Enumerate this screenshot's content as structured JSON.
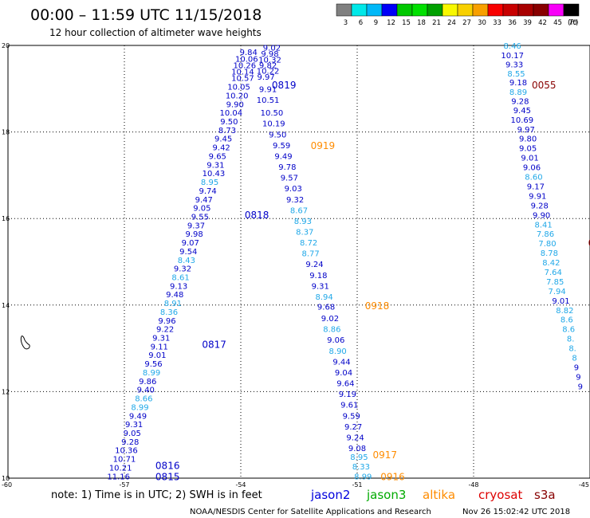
{
  "header": {
    "title": "00:00 – 11:59 UTC 11/15/2018",
    "subtitle": "12 hour collection of altimeter wave heights"
  },
  "colorbar": {
    "labels": [
      "3",
      "6",
      "9",
      "12",
      "15",
      "18",
      "21",
      "24",
      "27",
      "30",
      "33",
      "36",
      "39",
      "42",
      "45",
      "70"
    ],
    "unit": "(ft)",
    "colors": [
      "#808080",
      "#00e8e8",
      "#00b8f8",
      "#0000f8",
      "#00c800",
      "#00e000",
      "#00a000",
      "#f8f800",
      "#f8d000",
      "#f8a000",
      "#f80000",
      "#c80000",
      "#a80000",
      "#880000",
      "#f800f8",
      "#000000"
    ]
  },
  "axes": {
    "lat_ticks": [
      "20",
      "18",
      "16",
      "14",
      "12",
      "10"
    ],
    "lon_ticks": [
      "-60",
      "-57",
      "-54",
      "-51",
      "-48",
      "-45"
    ],
    "lat_values": [
      20,
      18,
      16,
      14,
      12,
      10
    ],
    "lon_values": [
      -60,
      -57,
      -54,
      -51,
      -48,
      -45
    ]
  },
  "footer": {
    "note": "note: 1) Time is in UTC; 2) SWH is in feet",
    "credit": "NOAA/NESDIS Center for Satellite Applications and Research",
    "timestamp": "Nov 26 15:02:42 UTC 2018"
  },
  "legend": [
    {
      "label": "jason2",
      "color": "#0000dd"
    },
    {
      "label": "jason3",
      "color": "#00aa00"
    },
    {
      "label": "altika",
      "color": "#ff8c00"
    },
    {
      "label": "cryosat",
      "color": "#dd0000"
    },
    {
      "label": "s3a",
      "color": "#880000"
    }
  ],
  "colors": {
    "blue": "#0000c8",
    "cyan": "#20a8e8",
    "orange": "#ff8c00",
    "darkred": "#880000",
    "grid": "#000000"
  },
  "time_labels": [
    {
      "text": "0819",
      "color": "blue",
      "lon": -53.2,
      "lat": 19.1
    },
    {
      "text": "0818",
      "color": "blue",
      "lon": -53.9,
      "lat": 16.1
    },
    {
      "text": "0817",
      "color": "blue",
      "lon": -55.0,
      "lat": 13.1
    },
    {
      "text": "0816",
      "color": "blue",
      "lon": -56.2,
      "lat": 10.3
    },
    {
      "text": "0815",
      "color": "blue",
      "lon": -56.2,
      "lat": 10.05
    },
    {
      "text": "0919",
      "color": "orange",
      "lon": -52.2,
      "lat": 17.7
    },
    {
      "text": "0918",
      "color": "orange",
      "lon": -50.8,
      "lat": 14.0
    },
    {
      "text": "0917",
      "color": "orange",
      "lon": -50.6,
      "lat": 10.55
    },
    {
      "text": "0916",
      "color": "orange",
      "lon": -50.4,
      "lat": 10.05
    },
    {
      "text": "0055",
      "color": "darkred",
      "lon": -46.5,
      "lat": 19.1
    },
    {
      "text": "0",
      "color": "darkred",
      "lon": -45.05,
      "lat": 15.45
    }
  ],
  "tracks": [
    {
      "name": "jason2-ascending-west",
      "points": [
        {
          "v": "11.16",
          "c": "blue",
          "lon": -57.15,
          "lat": 10.05
        },
        {
          "v": "10.21",
          "c": "blue",
          "lon": -57.1,
          "lat": 10.25
        },
        {
          "v": "10.71",
          "c": "blue",
          "lon": -57.0,
          "lat": 10.45
        },
        {
          "v": "10.36",
          "c": "blue",
          "lon": -56.95,
          "lat": 10.65
        },
        {
          "v": "9.28",
          "c": "blue",
          "lon": -56.85,
          "lat": 10.85
        },
        {
          "v": "9.05",
          "c": "blue",
          "lon": -56.8,
          "lat": 11.05
        },
        {
          "v": "9.31",
          "c": "blue",
          "lon": -56.75,
          "lat": 11.25
        },
        {
          "v": "9.49",
          "c": "blue",
          "lon": -56.65,
          "lat": 11.45
        },
        {
          "v": "8.99",
          "c": "cyan",
          "lon": -56.6,
          "lat": 11.65
        },
        {
          "v": "8.66",
          "c": "cyan",
          "lon": -56.5,
          "lat": 11.85
        },
        {
          "v": "9.40",
          "c": "blue",
          "lon": -56.45,
          "lat": 12.05
        },
        {
          "v": "9.86",
          "c": "blue",
          "lon": -56.4,
          "lat": 12.25
        },
        {
          "v": "8.99",
          "c": "cyan",
          "lon": -56.3,
          "lat": 12.45
        },
        {
          "v": "9.56",
          "c": "blue",
          "lon": -56.25,
          "lat": 12.65
        },
        {
          "v": "9.01",
          "c": "blue",
          "lon": -56.15,
          "lat": 12.85
        },
        {
          "v": "9.11",
          "c": "blue",
          "lon": -56.1,
          "lat": 13.05
        },
        {
          "v": "9.31",
          "c": "blue",
          "lon": -56.05,
          "lat": 13.25
        },
        {
          "v": "9.22",
          "c": "blue",
          "lon": -55.95,
          "lat": 13.45
        },
        {
          "v": "9.96",
          "c": "blue",
          "lon": -55.9,
          "lat": 13.65
        },
        {
          "v": "8.36",
          "c": "cyan",
          "lon": -55.85,
          "lat": 13.85
        },
        {
          "v": "8.91",
          "c": "cyan",
          "lon": -55.75,
          "lat": 14.05
        },
        {
          "v": "9.48",
          "c": "blue",
          "lon": -55.7,
          "lat": 14.25
        },
        {
          "v": "9.13",
          "c": "blue",
          "lon": -55.6,
          "lat": 14.45
        },
        {
          "v": "8.61",
          "c": "cyan",
          "lon": -55.55,
          "lat": 14.65
        },
        {
          "v": "9.32",
          "c": "blue",
          "lon": -55.5,
          "lat": 14.85
        },
        {
          "v": "8.43",
          "c": "cyan",
          "lon": -55.4,
          "lat": 15.05
        },
        {
          "v": "9.54",
          "c": "blue",
          "lon": -55.35,
          "lat": 15.25
        },
        {
          "v": "9.07",
          "c": "blue",
          "lon": -55.3,
          "lat": 15.45
        },
        {
          "v": "9.98",
          "c": "blue",
          "lon": -55.2,
          "lat": 15.65
        },
        {
          "v": "9.37",
          "c": "blue",
          "lon": -55.15,
          "lat": 15.85
        },
        {
          "v": "9.55",
          "c": "blue",
          "lon": -55.05,
          "lat": 16.05
        },
        {
          "v": "9.05",
          "c": "blue",
          "lon": -55.0,
          "lat": 16.25
        },
        {
          "v": "9.47",
          "c": "blue",
          "lon": -54.95,
          "lat": 16.45
        },
        {
          "v": "9.74",
          "c": "blue",
          "lon": -54.85,
          "lat": 16.65
        },
        {
          "v": "8.95",
          "c": "cyan",
          "lon": -54.8,
          "lat": 16.85
        },
        {
          "v": "10.43",
          "c": "blue",
          "lon": -54.7,
          "lat": 17.05
        },
        {
          "v": "9.31",
          "c": "blue",
          "lon": -54.65,
          "lat": 17.25
        },
        {
          "v": "9.65",
          "c": "blue",
          "lon": -54.6,
          "lat": 17.45
        },
        {
          "v": "9.42",
          "c": "blue",
          "lon": -54.5,
          "lat": 17.65
        },
        {
          "v": "9.45",
          "c": "blue",
          "lon": -54.45,
          "lat": 17.85
        },
        {
          "v": "8.73",
          "c": "blue",
          "lon": -54.35,
          "lat": 18.05
        },
        {
          "v": "9.50",
          "c": "blue",
          "lon": -54.3,
          "lat": 18.25
        },
        {
          "v": "10.04",
          "c": "blue",
          "lon": -54.25,
          "lat": 18.45
        },
        {
          "v": "9.90",
          "c": "blue",
          "lon": -54.15,
          "lat": 18.65
        },
        {
          "v": "10.20",
          "c": "blue",
          "lon": -54.1,
          "lat": 18.85
        },
        {
          "v": "10.05",
          "c": "blue",
          "lon": -54.05,
          "lat": 19.05
        },
        {
          "v": "10.57",
          "c": "blue",
          "lon": -53.95,
          "lat": 19.25
        },
        {
          "v": "10.14",
          "c": "blue",
          "lon": -53.95,
          "lat": 19.4
        },
        {
          "v": "10.26",
          "c": "blue",
          "lon": -53.9,
          "lat": 19.55
        },
        {
          "v": "10.06",
          "c": "blue",
          "lon": -53.85,
          "lat": 19.7
        },
        {
          "v": "9.84",
          "c": "blue",
          "lon": -53.8,
          "lat": 19.85
        }
      ]
    },
    {
      "name": "jason2-descending-east",
      "points": [
        {
          "v": "9.02",
          "c": "blue",
          "lon": -53.2,
          "lat": 19.95
        },
        {
          "v": "9.98",
          "c": "blue",
          "lon": -53.25,
          "lat": 19.82
        },
        {
          "v": "10.32",
          "c": "blue",
          "lon": -53.25,
          "lat": 19.68
        },
        {
          "v": "9.82",
          "c": "blue",
          "lon": -53.3,
          "lat": 19.55
        },
        {
          "v": "10.22",
          "c": "blue",
          "lon": -53.3,
          "lat": 19.42
        },
        {
          "v": "9.97",
          "c": "blue",
          "lon": -53.35,
          "lat": 19.28
        },
        {
          "v": "9.91",
          "c": "blue",
          "lon": -53.3,
          "lat": 19.0
        },
        {
          "v": "10.51",
          "c": "blue",
          "lon": -53.3,
          "lat": 18.75
        },
        {
          "v": "10.50",
          "c": "blue",
          "lon": -53.2,
          "lat": 18.45
        },
        {
          "v": "10.19",
          "c": "blue",
          "lon": -53.15,
          "lat": 18.2
        },
        {
          "v": "9.50",
          "c": "blue",
          "lon": -53.05,
          "lat": 17.95
        },
        {
          "v": "9.59",
          "c": "blue",
          "lon": -52.95,
          "lat": 17.7
        },
        {
          "v": "9.49",
          "c": "blue",
          "lon": -52.9,
          "lat": 17.45
        },
        {
          "v": "9.78",
          "c": "blue",
          "lon": -52.8,
          "lat": 17.2
        },
        {
          "v": "9.57",
          "c": "blue",
          "lon": -52.75,
          "lat": 16.95
        },
        {
          "v": "9.03",
          "c": "blue",
          "lon": -52.65,
          "lat": 16.7
        },
        {
          "v": "9.32",
          "c": "blue",
          "lon": -52.6,
          "lat": 16.45
        },
        {
          "v": "8.67",
          "c": "cyan",
          "lon": -52.5,
          "lat": 16.2
        },
        {
          "v": "8.93",
          "c": "cyan",
          "lon": -52.4,
          "lat": 15.95
        },
        {
          "v": "8.37",
          "c": "cyan",
          "lon": -52.35,
          "lat": 15.7
        },
        {
          "v": "8.72",
          "c": "cyan",
          "lon": -52.25,
          "lat": 15.45
        },
        {
          "v": "8.77",
          "c": "cyan",
          "lon": -52.2,
          "lat": 15.2
        },
        {
          "v": "9.24",
          "c": "blue",
          "lon": -52.1,
          "lat": 14.95
        },
        {
          "v": "9.18",
          "c": "blue",
          "lon": -52.0,
          "lat": 14.7
        },
        {
          "v": "9.31",
          "c": "blue",
          "lon": -51.95,
          "lat": 14.45
        },
        {
          "v": "8.94",
          "c": "cyan",
          "lon": -51.85,
          "lat": 14.2
        },
        {
          "v": "9.68",
          "c": "blue",
          "lon": -51.8,
          "lat": 13.97
        },
        {
          "v": "9.02",
          "c": "blue",
          "lon": -51.7,
          "lat": 13.7
        },
        {
          "v": "8.86",
          "c": "cyan",
          "lon": -51.65,
          "lat": 13.45
        },
        {
          "v": "9.06",
          "c": "blue",
          "lon": -51.55,
          "lat": 13.2
        },
        {
          "v": "8.90",
          "c": "cyan",
          "lon": -51.5,
          "lat": 12.95
        },
        {
          "v": "9.44",
          "c": "blue",
          "lon": -51.4,
          "lat": 12.7
        },
        {
          "v": "9.04",
          "c": "blue",
          "lon": -51.35,
          "lat": 12.45
        },
        {
          "v": "9.64",
          "c": "blue",
          "lon": -51.3,
          "lat": 12.2
        },
        {
          "v": "9.19",
          "c": "blue",
          "lon": -51.25,
          "lat": 11.95
        },
        {
          "v": "9.61",
          "c": "blue",
          "lon": -51.2,
          "lat": 11.7
        },
        {
          "v": "9.59",
          "c": "blue",
          "lon": -51.15,
          "lat": 11.45
        },
        {
          "v": "9.27",
          "c": "blue",
          "lon": -51.1,
          "lat": 11.2
        },
        {
          "v": "9.24",
          "c": "blue",
          "lon": -51.05,
          "lat": 10.95
        },
        {
          "v": "9.08",
          "c": "blue",
          "lon": -51.0,
          "lat": 10.7
        },
        {
          "v": "8.95",
          "c": "cyan",
          "lon": -50.95,
          "lat": 10.5
        },
        {
          "v": "8.33",
          "c": "cyan",
          "lon": -50.9,
          "lat": 10.28
        },
        {
          "v": "8.99",
          "c": "cyan",
          "lon": -50.85,
          "lat": 10.05
        }
      ]
    },
    {
      "name": "s3a-descending",
      "points": [
        {
          "v": "8.46",
          "c": "cyan",
          "lon": -47.0,
          "lat": 20.0
        },
        {
          "v": "10.17",
          "c": "blue",
          "lon": -47.0,
          "lat": 19.78
        },
        {
          "v": "9.33",
          "c": "blue",
          "lon": -46.95,
          "lat": 19.57
        },
        {
          "v": "8.55",
          "c": "cyan",
          "lon": -46.9,
          "lat": 19.36
        },
        {
          "v": "9.18",
          "c": "blue",
          "lon": -46.85,
          "lat": 19.15
        },
        {
          "v": "8.89",
          "c": "cyan",
          "lon": -46.85,
          "lat": 18.93
        },
        {
          "v": "9.28",
          "c": "blue",
          "lon": -46.8,
          "lat": 18.72
        },
        {
          "v": "9.45",
          "c": "blue",
          "lon": -46.75,
          "lat": 18.51
        },
        {
          "v": "10.69",
          "c": "blue",
          "lon": -46.75,
          "lat": 18.29
        },
        {
          "v": "9.97",
          "c": "blue",
          "lon": -46.65,
          "lat": 18.07
        },
        {
          "v": "9.80",
          "c": "blue",
          "lon": -46.6,
          "lat": 17.85
        },
        {
          "v": "9.05",
          "c": "blue",
          "lon": -46.6,
          "lat": 17.63
        },
        {
          "v": "9.01",
          "c": "blue",
          "lon": -46.55,
          "lat": 17.41
        },
        {
          "v": "9.06",
          "c": "blue",
          "lon": -46.5,
          "lat": 17.19
        },
        {
          "v": "8.60",
          "c": "cyan",
          "lon": -46.45,
          "lat": 16.97
        },
        {
          "v": "9.17",
          "c": "blue",
          "lon": -46.4,
          "lat": 16.75
        },
        {
          "v": "9.91",
          "c": "blue",
          "lon": -46.35,
          "lat": 16.53
        },
        {
          "v": "9.28",
          "c": "blue",
          "lon": -46.3,
          "lat": 16.31
        },
        {
          "v": "9.90",
          "c": "blue",
          "lon": -46.25,
          "lat": 16.09
        },
        {
          "v": "8.41",
          "c": "cyan",
          "lon": -46.2,
          "lat": 15.87
        },
        {
          "v": "7.86",
          "c": "cyan",
          "lon": -46.15,
          "lat": 15.65
        },
        {
          "v": "7.80",
          "c": "cyan",
          "lon": -46.1,
          "lat": 15.43
        },
        {
          "v": "8.78",
          "c": "cyan",
          "lon": -46.05,
          "lat": 15.21
        },
        {
          "v": "8.42",
          "c": "cyan",
          "lon": -46.0,
          "lat": 14.99
        },
        {
          "v": "7.64",
          "c": "cyan",
          "lon": -45.95,
          "lat": 14.77
        },
        {
          "v": "7.85",
          "c": "cyan",
          "lon": -45.9,
          "lat": 14.55
        },
        {
          "v": "7.94",
          "c": "cyan",
          "lon": -45.85,
          "lat": 14.33
        },
        {
          "v": "9.01",
          "c": "blue",
          "lon": -45.75,
          "lat": 14.11
        },
        {
          "v": "8.82",
          "c": "cyan",
          "lon": -45.65,
          "lat": 13.89
        },
        {
          "v": "8.6",
          "c": "cyan",
          "lon": -45.6,
          "lat": 13.67
        },
        {
          "v": "8.6",
          "c": "cyan",
          "lon": -45.55,
          "lat": 13.45
        },
        {
          "v": "8.",
          "c": "cyan",
          "lon": -45.5,
          "lat": 13.23
        },
        {
          "v": "8.",
          "c": "cyan",
          "lon": -45.45,
          "lat": 13.01
        },
        {
          "v": "8",
          "c": "cyan",
          "lon": -45.4,
          "lat": 12.79
        },
        {
          "v": "9",
          "c": "blue",
          "lon": -45.35,
          "lat": 12.57
        },
        {
          "v": "9",
          "c": "blue",
          "lon": -45.3,
          "lat": 12.35
        },
        {
          "v": "9",
          "c": "blue",
          "lon": -45.25,
          "lat": 12.13
        }
      ]
    }
  ]
}
